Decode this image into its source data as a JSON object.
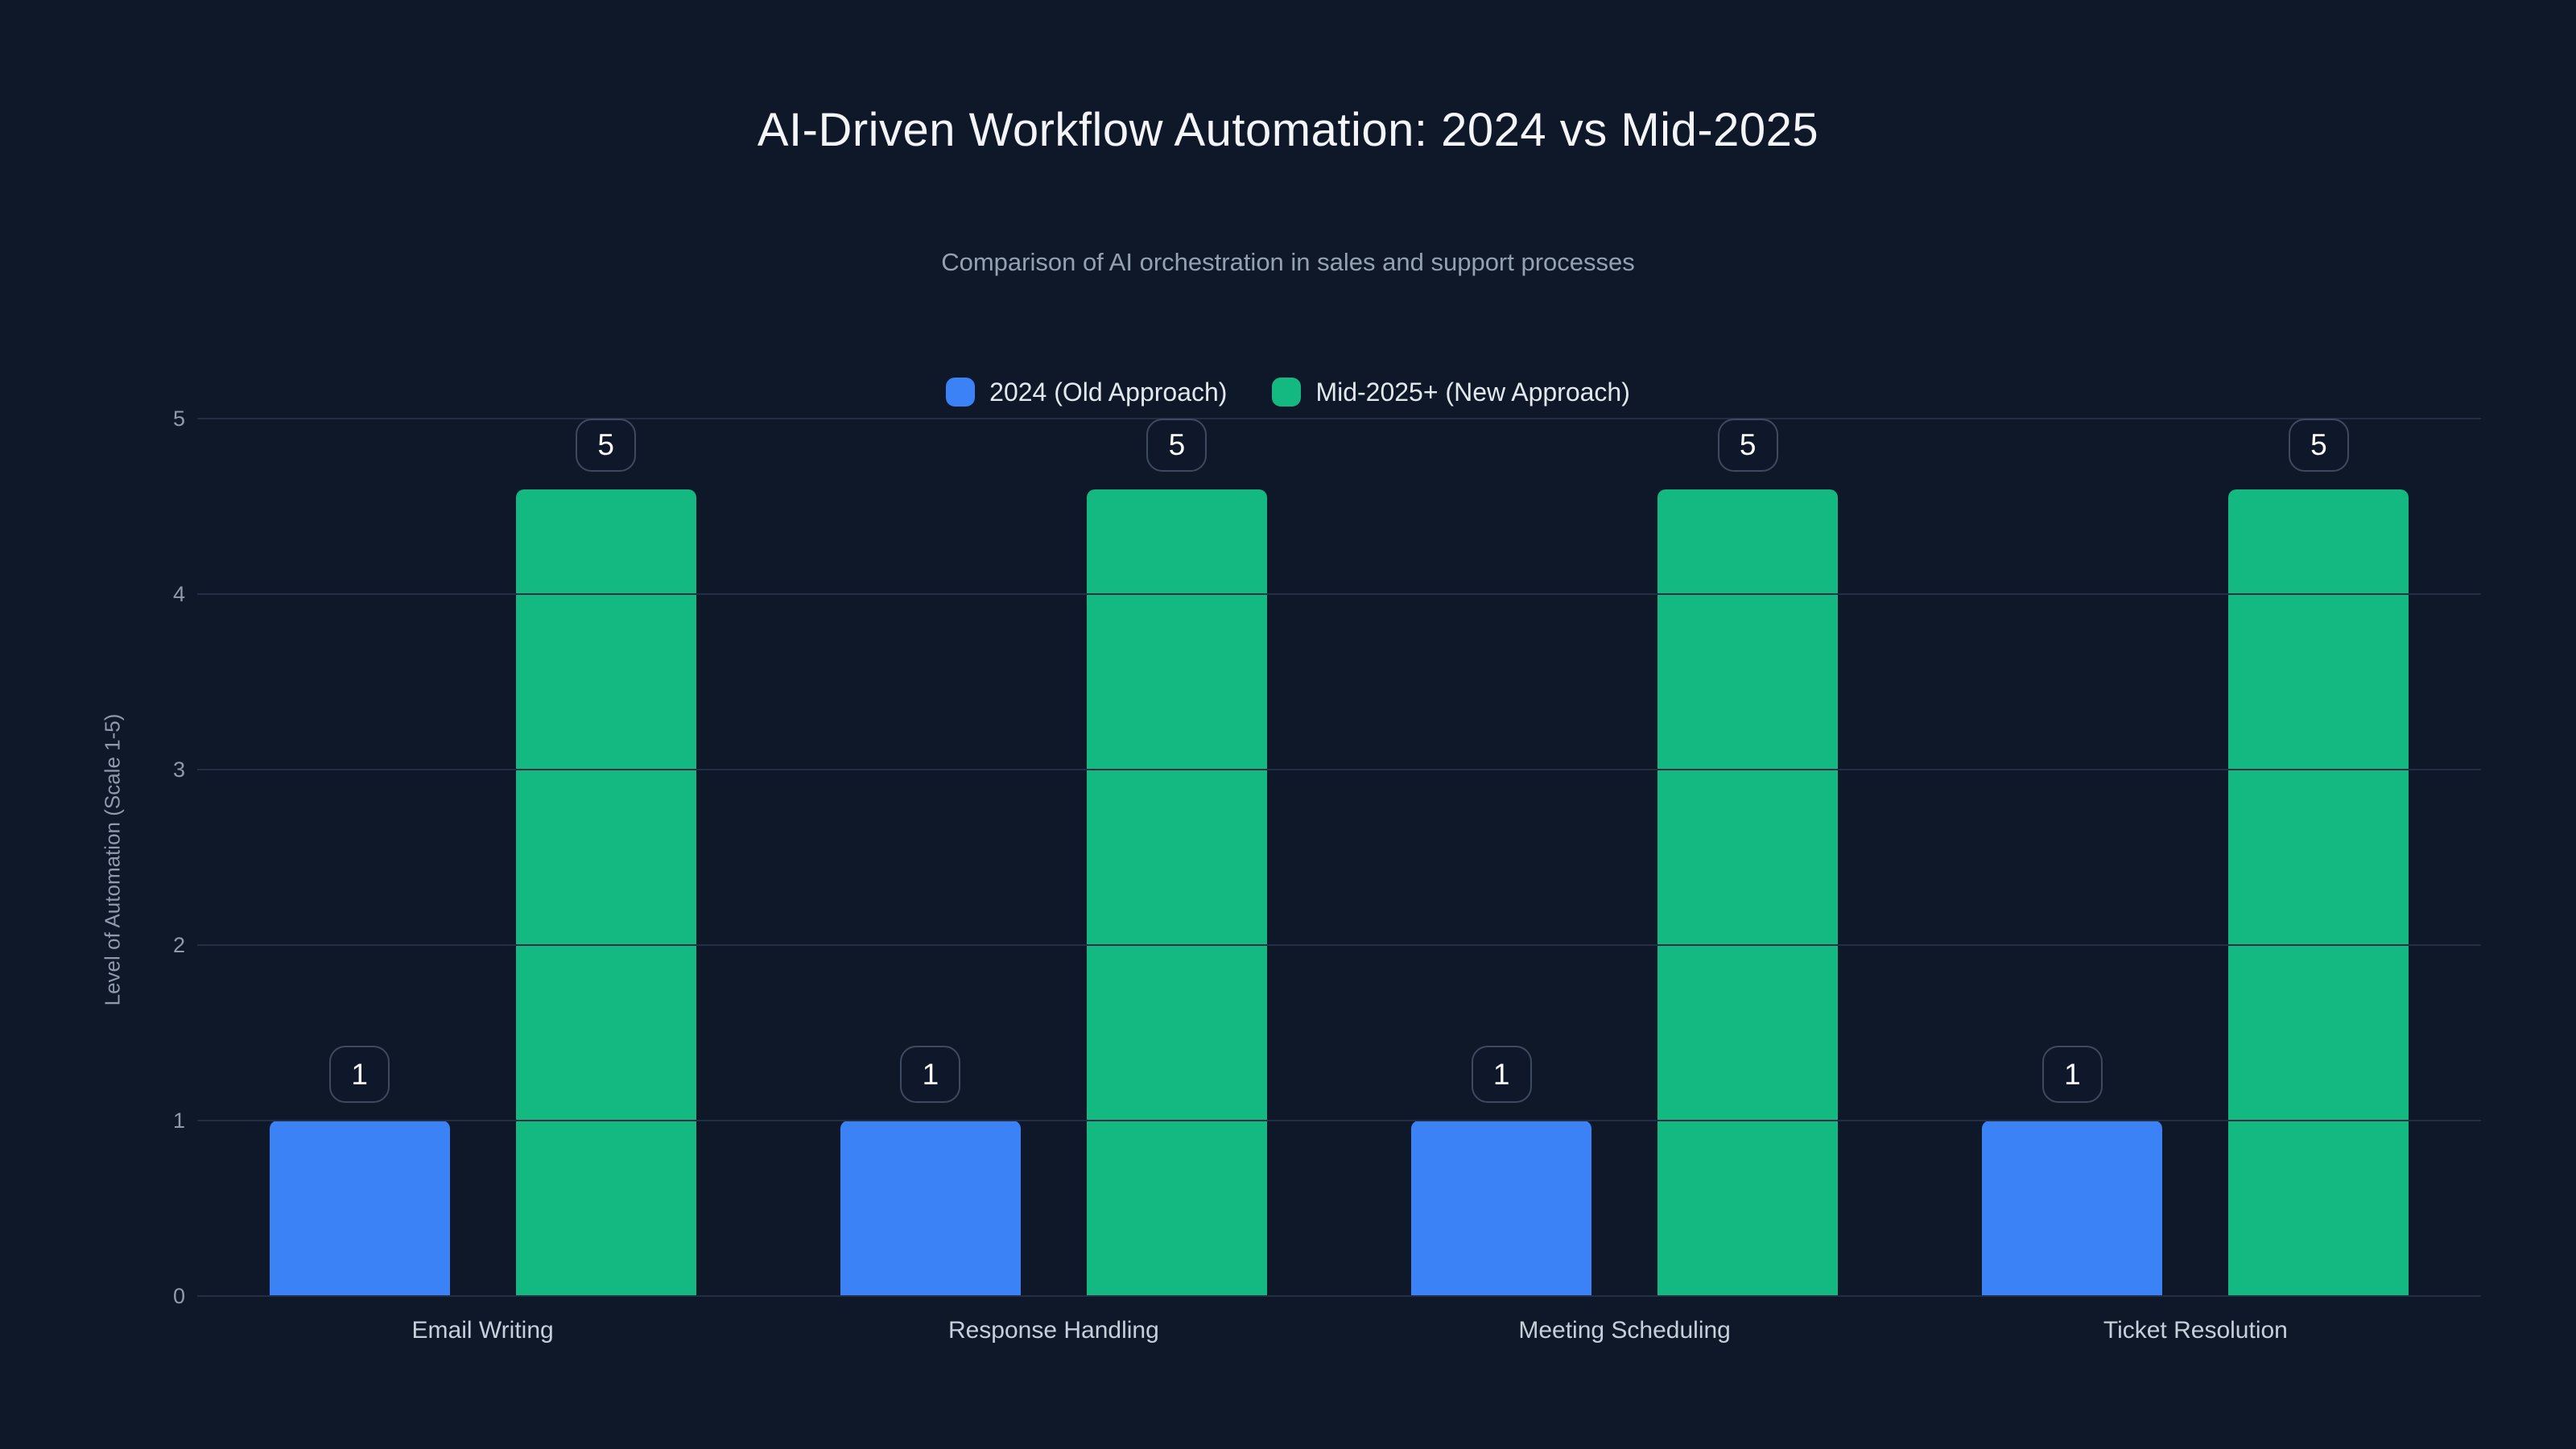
{
  "colors": {
    "background": "#0f1828",
    "gridline": "#232e45",
    "title": "#f3f5f8",
    "subtitle": "#94a1b2",
    "tick_label": "#8e9aad",
    "x_label": "#c6cfda",
    "value_label_border": "#3e4a5f",
    "series_2024": "#3b82f6",
    "series_2025": "#13b981"
  },
  "chart_data": {
    "type": "bar",
    "title": "AI-Driven Workflow Automation: 2024 vs Mid-2025",
    "subtitle": "Comparison of AI orchestration in sales and support processes",
    "categories": [
      "Email Writing",
      "Response Handling",
      "Meeting Scheduling",
      "Ticket Resolution"
    ],
    "series": [
      {
        "name": "2024 (Old Approach)",
        "color": "#3b82f6",
        "values": [
          1,
          1,
          1,
          1
        ]
      },
      {
        "name": "Mid-2025+ (New Approach)",
        "color": "#13b981",
        "values": [
          5,
          5,
          5,
          5
        ]
      }
    ],
    "xlabel": "",
    "ylabel": "Level of Automation (Scale 1-5)",
    "ylim": [
      0,
      5
    ],
    "yticks": [
      0,
      1,
      2,
      3,
      4,
      5
    ],
    "grid": true,
    "legend_position": "top-center",
    "data_labels": true
  }
}
